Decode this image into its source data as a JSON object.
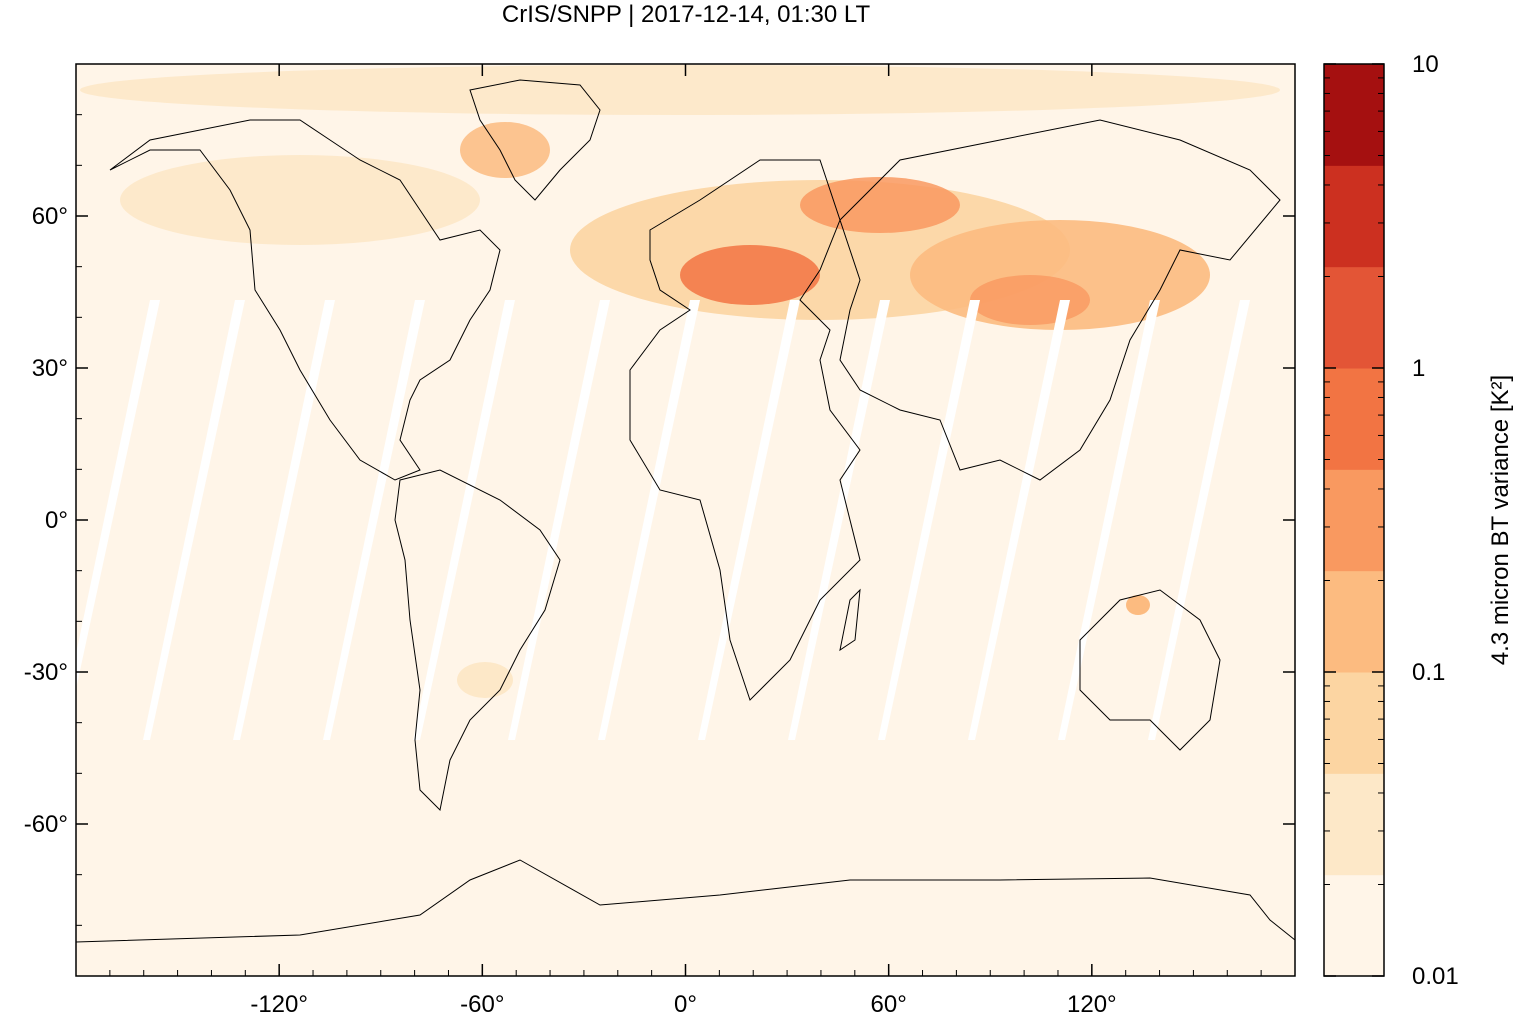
{
  "title": "CrIS/SNPP | 2017-12-14, 01:30 LT",
  "map": {
    "projection": "equirectangular",
    "lon_range": [
      -180,
      180
    ],
    "lat_range": [
      -90,
      90
    ],
    "background_color": "#fff5e8",
    "coastline_color": "#000000",
    "swath_gap_color": "#ffffff",
    "x_ticks": [
      {
        "value": -120,
        "label": "-120°"
      },
      {
        "value": -60,
        "label": "-60°"
      },
      {
        "value": 0,
        "label": "0°"
      },
      {
        "value": 60,
        "label": "60°"
      },
      {
        "value": 120,
        "label": "120°"
      }
    ],
    "y_ticks": [
      {
        "value": 60,
        "label": "60°"
      },
      {
        "value": 30,
        "label": "30°"
      },
      {
        "value": 0,
        "label": "0°"
      },
      {
        "value": -30,
        "label": "-30°"
      },
      {
        "value": -60,
        "label": "-60°"
      }
    ]
  },
  "colorbar": {
    "title": "4.3 micron BT variance [K²]",
    "scale": "log",
    "range": [
      0.01,
      10
    ],
    "labels": [
      {
        "value": 10,
        "label": "10"
      },
      {
        "value": 1,
        "label": "1"
      },
      {
        "value": 0.1,
        "label": "0.1"
      },
      {
        "value": 0.01,
        "label": "0.01"
      }
    ],
    "colors": [
      "#fff5e8",
      "#fde8c8",
      "#fcd5a2",
      "#fcbb80",
      "#f99960",
      "#f27443",
      "#e35536",
      "#cc3020",
      "#a51010"
    ]
  }
}
